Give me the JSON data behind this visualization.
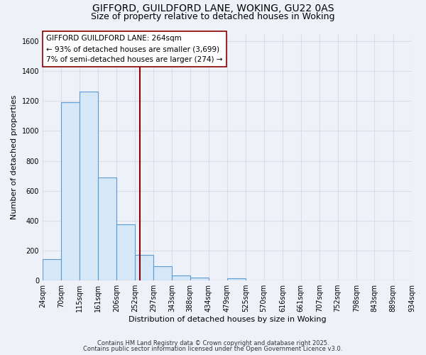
{
  "title_line1": "GIFFORD, GUILDFORD LANE, WOKING, GU22 0AS",
  "title_line2": "Size of property relative to detached houses in Woking",
  "xlabel": "Distribution of detached houses by size in Woking",
  "ylabel": "Number of detached properties",
  "bar_left_edges": [
    24,
    70,
    115,
    161,
    206,
    252,
    297,
    343,
    388,
    434,
    479,
    525,
    570,
    616,
    661,
    707,
    752,
    798,
    843,
    889
  ],
  "bar_heights": [
    145,
    1190,
    1265,
    690,
    375,
    170,
    95,
    35,
    20,
    0,
    15,
    0,
    0,
    0,
    0,
    0,
    0,
    0,
    0,
    0
  ],
  "bin_width": 46,
  "bar_fill_color": "#d6e8f7",
  "bar_edge_color": "#5b9bd5",
  "ylim": [
    0,
    1650
  ],
  "yticks": [
    0,
    200,
    400,
    600,
    800,
    1000,
    1200,
    1400,
    1600
  ],
  "xtick_labels": [
    "24sqm",
    "70sqm",
    "115sqm",
    "161sqm",
    "206sqm",
    "252sqm",
    "297sqm",
    "343sqm",
    "388sqm",
    "434sqm",
    "479sqm",
    "525sqm",
    "570sqm",
    "616sqm",
    "661sqm",
    "707sqm",
    "752sqm",
    "798sqm",
    "843sqm",
    "889sqm",
    "934sqm"
  ],
  "vline_x": 264,
  "vline_color": "#8b0000",
  "annotation_line1": "GIFFORD GUILDFORD LANE: 264sqm",
  "annotation_line2": "← 93% of detached houses are smaller (3,699)",
  "annotation_line3": "7% of semi-detached houses are larger (274) →",
  "background_color": "#eef2f8",
  "plot_bg_color": "#eef2f8",
  "grid_color": "#d8dde8",
  "footnote1": "Contains HM Land Registry data © Crown copyright and database right 2025.",
  "footnote2": "Contains public sector information licensed under the Open Government Licence v3.0.",
  "title_fontsize": 10,
  "subtitle_fontsize": 9,
  "tick_fontsize": 7,
  "ylabel_fontsize": 8,
  "xlabel_fontsize": 8,
  "annot_fontsize": 7.5
}
